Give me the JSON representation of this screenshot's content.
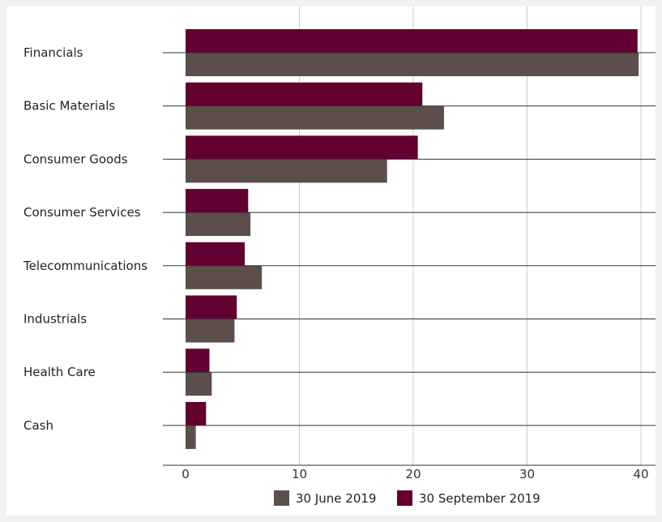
{
  "chart_data": {
    "type": "bar",
    "orientation": "horizontal",
    "title": "",
    "xlabel": "",
    "ylabel": "",
    "categories": [
      "Financials",
      "Basic Materials",
      "Consumer Goods",
      "Consumer Services",
      "Telecommunications",
      "Industrials",
      "Health Care",
      "Cash"
    ],
    "series": [
      {
        "name": "30 September 2019",
        "color": "#620031",
        "values": [
          39.7,
          20.8,
          20.4,
          5.5,
          5.2,
          4.5,
          2.1,
          1.8
        ]
      },
      {
        "name": "30 June 2019",
        "color": "#5b4e4b",
        "values": [
          39.8,
          22.7,
          17.7,
          5.7,
          6.7,
          4.3,
          2.3,
          0.9
        ]
      }
    ],
    "xlim": [
      0,
      40
    ],
    "xticks": [
      0,
      10,
      20,
      30,
      40
    ],
    "grid": "vertical",
    "legend_position": "bottom",
    "legend": [
      {
        "label": "30 June 2019",
        "color": "#5b4e4b"
      },
      {
        "label": "30 September 2019",
        "color": "#620031"
      }
    ]
  }
}
